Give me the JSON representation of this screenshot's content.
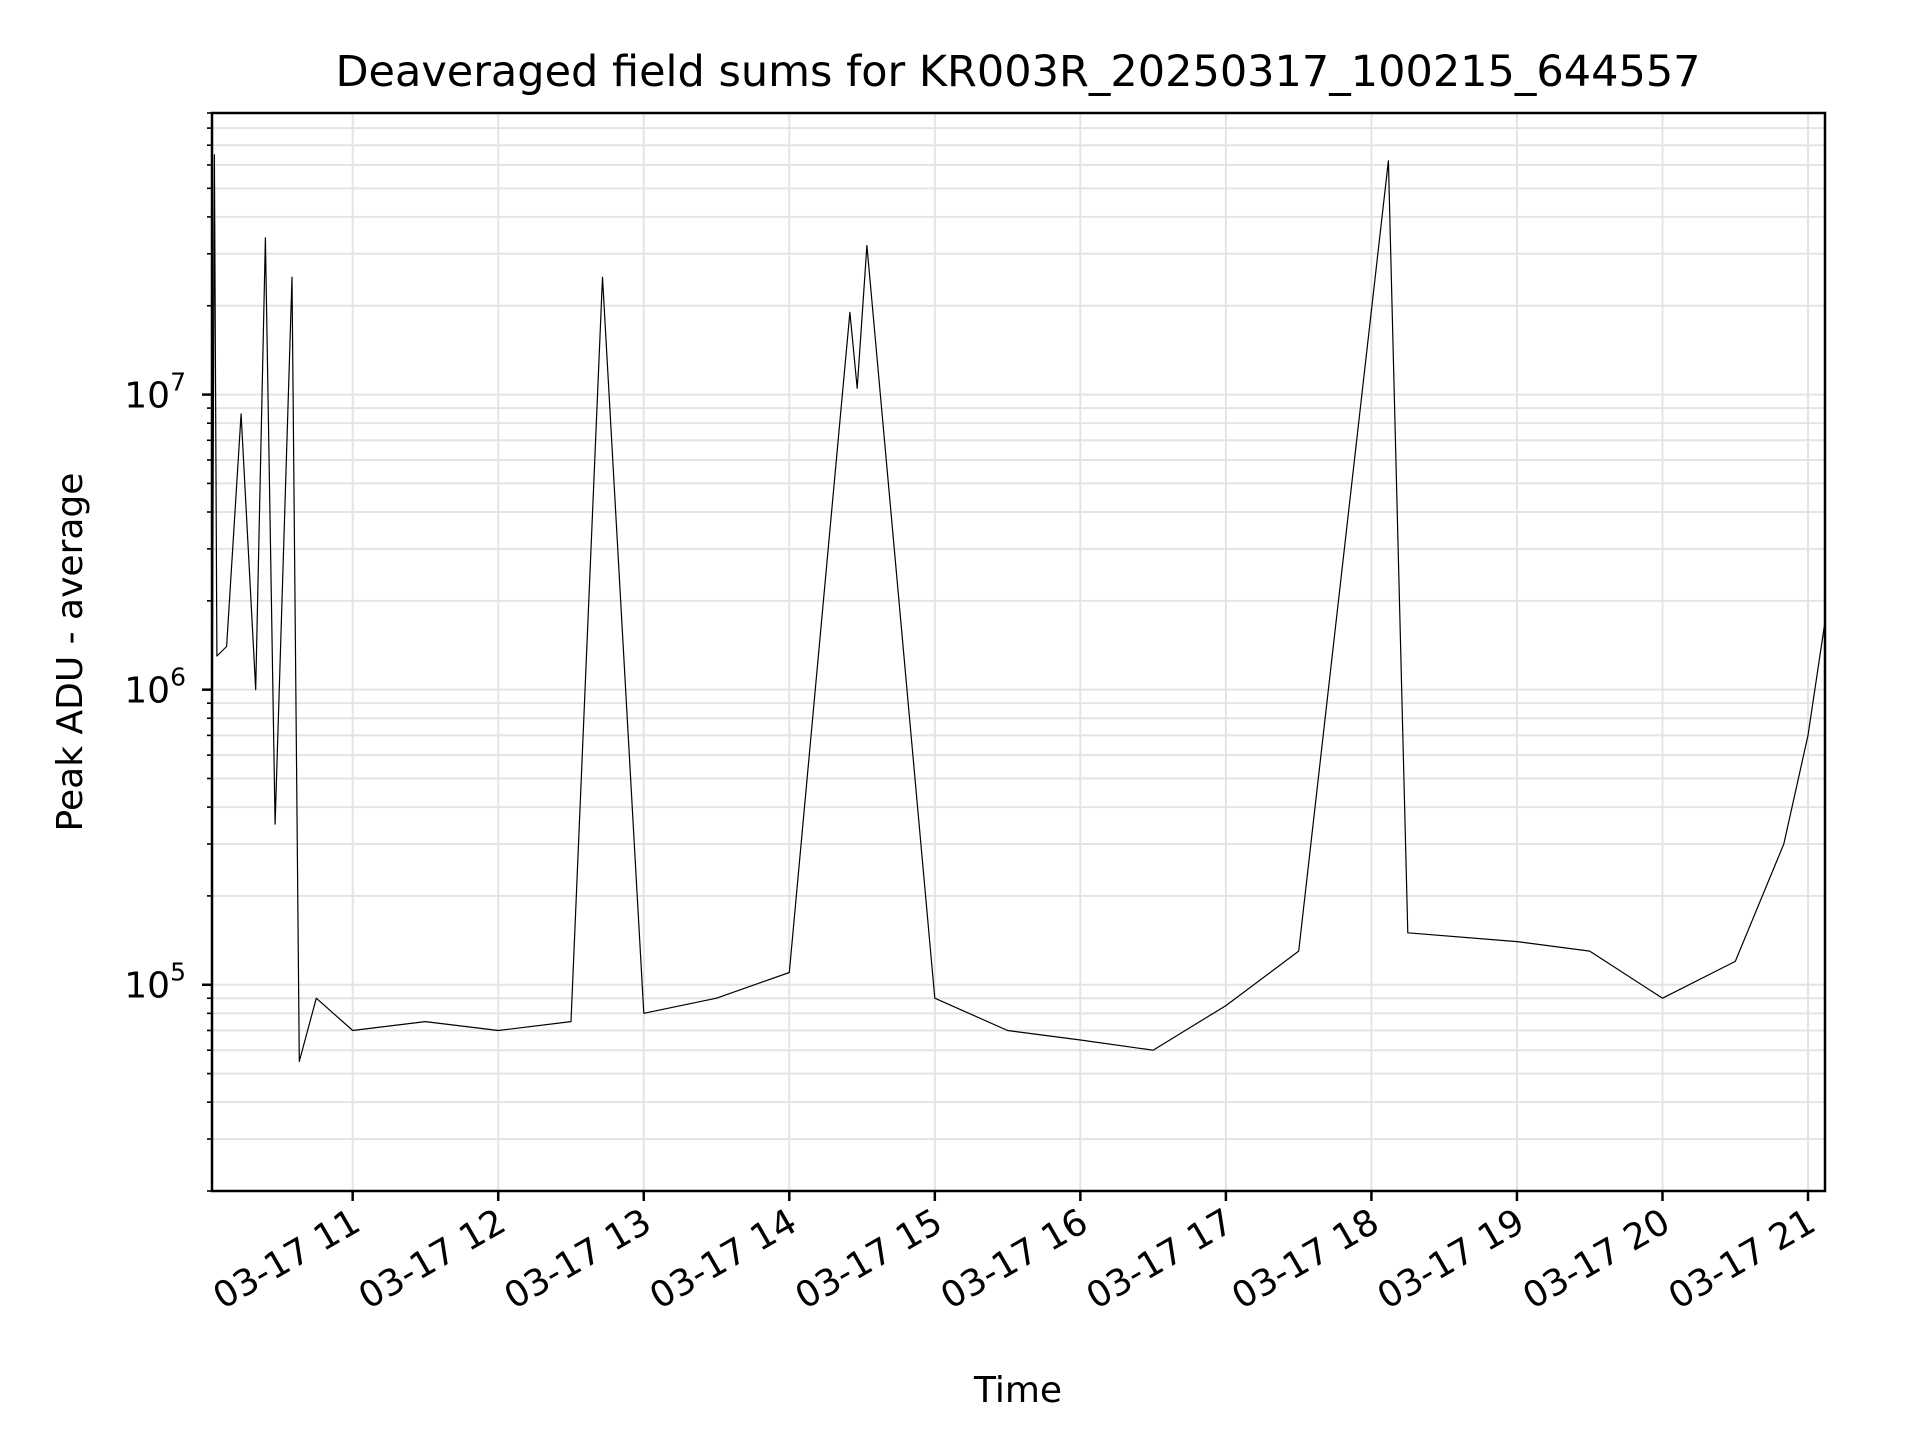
{
  "chart_data": {
    "type": "line",
    "title": "Deaveraged field sums for KR003R_20250317_100215_644557",
    "xlabel": "Time",
    "ylabel": "Peak ADU - average",
    "yscale": "log",
    "xlim": [
      "2025-03-17 10:02",
      "2025-03-17 21:07"
    ],
    "ylim": [
      20000,
      90000000
    ],
    "grid": true,
    "x_ticks": [
      {
        "value": "2025-03-17 11:00",
        "label": "03-17 11"
      },
      {
        "value": "2025-03-17 12:00",
        "label": "03-17 12"
      },
      {
        "value": "2025-03-17 13:00",
        "label": "03-17 13"
      },
      {
        "value": "2025-03-17 14:00",
        "label": "03-17 14"
      },
      {
        "value": "2025-03-17 15:00",
        "label": "03-17 15"
      },
      {
        "value": "2025-03-17 16:00",
        "label": "03-17 16"
      },
      {
        "value": "2025-03-17 17:00",
        "label": "03-17 17"
      },
      {
        "value": "2025-03-17 18:00",
        "label": "03-17 18"
      },
      {
        "value": "2025-03-17 19:00",
        "label": "03-17 19"
      },
      {
        "value": "2025-03-17 20:00",
        "label": "03-17 20"
      },
      {
        "value": "2025-03-17 21:00",
        "label": "03-17 21"
      }
    ],
    "y_ticks": [
      {
        "value": 100000,
        "base": "10",
        "exponent": "5"
      },
      {
        "value": 1000000,
        "base": "10",
        "exponent": "6"
      },
      {
        "value": 10000000,
        "base": "10",
        "exponent": "7"
      }
    ],
    "series": [
      {
        "color": "#000000",
        "points": [
          {
            "x": "2025-03-17 10:02",
            "y": 500000
          },
          {
            "x": "2025-03-17 10:03",
            "y": 65000000
          },
          {
            "x": "2025-03-17 10:04",
            "y": 1300000
          },
          {
            "x": "2025-03-17 10:08",
            "y": 1400000
          },
          {
            "x": "2025-03-17 10:14",
            "y": 8600000
          },
          {
            "x": "2025-03-17 10:20",
            "y": 1000000
          },
          {
            "x": "2025-03-17 10:24",
            "y": 34000000
          },
          {
            "x": "2025-03-17 10:28",
            "y": 350000
          },
          {
            "x": "2025-03-17 10:35",
            "y": 25000000
          },
          {
            "x": "2025-03-17 10:38",
            "y": 55000
          },
          {
            "x": "2025-03-17 10:45",
            "y": 90000
          },
          {
            "x": "2025-03-17 11:00",
            "y": 70000
          },
          {
            "x": "2025-03-17 11:30",
            "y": 75000
          },
          {
            "x": "2025-03-17 12:00",
            "y": 70000
          },
          {
            "x": "2025-03-17 12:30",
            "y": 75000
          },
          {
            "x": "2025-03-17 12:43",
            "y": 25000000
          },
          {
            "x": "2025-03-17 13:00",
            "y": 80000
          },
          {
            "x": "2025-03-17 13:30",
            "y": 90000
          },
          {
            "x": "2025-03-17 14:00",
            "y": 110000
          },
          {
            "x": "2025-03-17 14:25",
            "y": 19000000
          },
          {
            "x": "2025-03-17 14:28",
            "y": 10500000
          },
          {
            "x": "2025-03-17 14:32",
            "y": 32000000
          },
          {
            "x": "2025-03-17 15:00",
            "y": 90000
          },
          {
            "x": "2025-03-17 15:30",
            "y": 70000
          },
          {
            "x": "2025-03-17 16:00",
            "y": 65000
          },
          {
            "x": "2025-03-17 16:30",
            "y": 60000
          },
          {
            "x": "2025-03-17 17:00",
            "y": 85000
          },
          {
            "x": "2025-03-17 17:30",
            "y": 130000
          },
          {
            "x": "2025-03-17 18:07",
            "y": 62000000
          },
          {
            "x": "2025-03-17 18:15",
            "y": 150000
          },
          {
            "x": "2025-03-17 19:00",
            "y": 140000
          },
          {
            "x": "2025-03-17 19:30",
            "y": 130000
          },
          {
            "x": "2025-03-17 20:00",
            "y": 90000
          },
          {
            "x": "2025-03-17 20:30",
            "y": 120000
          },
          {
            "x": "2025-03-17 20:50",
            "y": 300000
          },
          {
            "x": "2025-03-17 21:00",
            "y": 700000
          },
          {
            "x": "2025-03-17 21:07",
            "y": 1700000
          }
        ]
      }
    ]
  }
}
